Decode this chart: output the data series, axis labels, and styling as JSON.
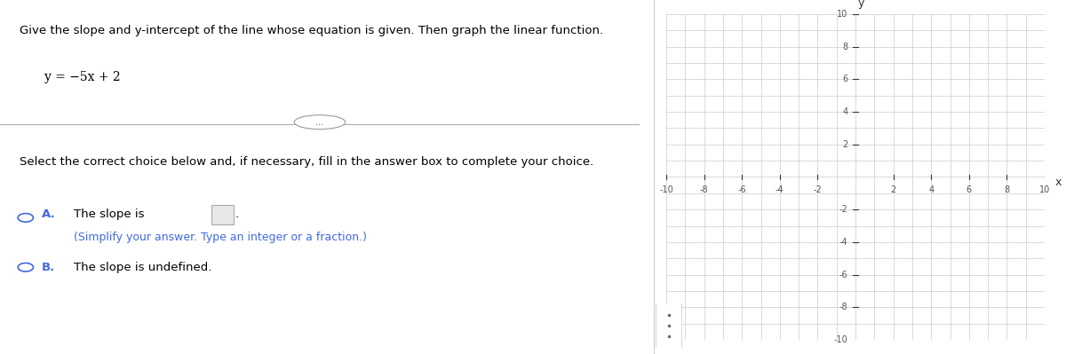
{
  "title": "Give the slope and y-intercept of the line whose equation is given. Then graph the linear function.",
  "equation": "y = −5x + 2",
  "select_text": "Select the correct choice below and, if necessary, fill in the answer box to complete your choice.",
  "choice_A_label": "A.",
  "choice_A_text": "The slope is",
  "choice_A_hint": "(Simplify your answer. Type an integer or a fraction.)",
  "choice_B_label": "B.",
  "choice_B_text": "The slope is undefined.",
  "xlim": [
    -10,
    10
  ],
  "ylim": [
    -10,
    10
  ],
  "xticks": [
    -10,
    -8,
    -6,
    -4,
    -2,
    2,
    4,
    6,
    8,
    10
  ],
  "yticks": [
    -10,
    -8,
    -6,
    -4,
    -2,
    2,
    4,
    6,
    8,
    10
  ],
  "grid_color": "#cccccc",
  "axis_color": "#333333",
  "label_color": "#555555",
  "axis_label_x": "x",
  "axis_label_y": "y",
  "text_color_black": "#000000",
  "text_color_blue": "#4169e1",
  "bg_color": "#ffffff"
}
